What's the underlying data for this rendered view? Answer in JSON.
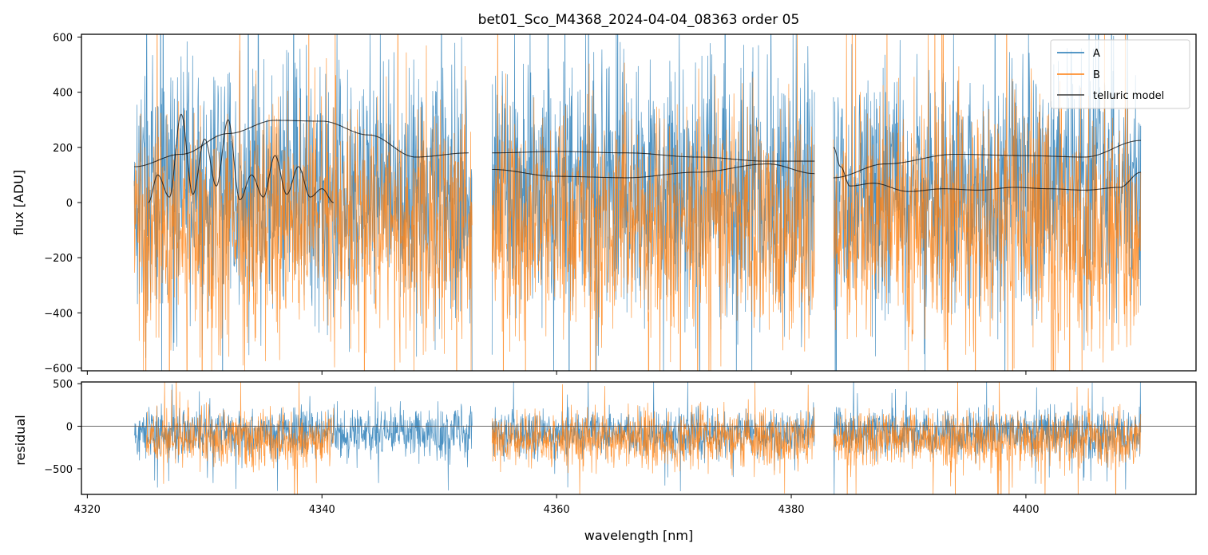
{
  "chart_data": [
    {
      "type": "line",
      "panel": "flux",
      "title": "bet01_Sco_M4368_2024-04-04_08363  order 05",
      "xlabel": "",
      "ylabel": "flux [ADU]",
      "xlim": [
        4319.5,
        4414.5
      ],
      "ylim": [
        -610,
        610
      ],
      "x_ticks": [
        4320,
        4340,
        4360,
        4380,
        4400
      ],
      "y_ticks": [
        -600,
        -400,
        -200,
        0,
        200,
        400,
        600
      ],
      "y_tick_labels": [
        "−600",
        "−400",
        "−200",
        "0",
        "200",
        "400",
        "600"
      ],
      "legend_position": "top-right",
      "segments": [
        [
          4324.0,
          4352.8
        ],
        [
          4354.5,
          4382.0
        ],
        [
          4383.6,
          4409.8
        ]
      ],
      "series": [
        {
          "name": "A",
          "color": "#1f77b4",
          "mean": 50,
          "spread": 320,
          "style": "noisy"
        },
        {
          "name": "B",
          "color": "#ff7f0e",
          "mean": -80,
          "spread": 300,
          "style": "noisy"
        },
        {
          "name": "telluric model",
          "color": "#000000",
          "continuum_curves": [
            {
              "x": [
                4324,
                4328,
                4332,
                4336,
                4340,
                4344,
                4348,
                4352.5
              ],
              "y": [
                130,
                175,
                250,
                298,
                295,
                245,
                165,
                180
              ]
            },
            {
              "x": [
                4354.5,
                4360,
                4366,
                4372,
                4378,
                4382
              ],
              "y": [
                180,
                185,
                180,
                165,
                150,
                150
              ]
            },
            {
              "x": [
                4354.5,
                4360,
                4366,
                4372,
                4378,
                4382
              ],
              "y": [
                120,
                95,
                90,
                110,
                140,
                105
              ]
            },
            {
              "x": [
                4383.6,
                4388,
                4394,
                4400,
                4405,
                4409.8
              ],
              "y": [
                90,
                140,
                175,
                170,
                165,
                225
              ]
            }
          ],
          "lines": [
            {
              "x": [
                4325.2,
                4326,
                4327,
                4328,
                4329,
                4330,
                4331,
                4332,
                4333,
                4334,
                4335,
                4336,
                4337,
                4338,
                4339,
                4340,
                4341
              ],
              "y": [
                0,
                100,
                20,
                320,
                30,
                230,
                60,
                300,
                10,
                100,
                20,
                170,
                30,
                130,
                20,
                50,
                0
              ]
            },
            {
              "x": [
                4383.6,
                4384.2,
                4385,
                4387,
                4390,
                4393,
                4396,
                4399,
                4402,
                4405,
                4408,
                4409.8
              ],
              "y": [
                200,
                130,
                60,
                70,
                40,
                50,
                45,
                55,
                50,
                45,
                55,
                110
              ]
            }
          ]
        }
      ]
    },
    {
      "type": "line",
      "panel": "residual",
      "title": "",
      "xlabel": "wavelength [nm]",
      "ylabel": "residual",
      "xlim": [
        4319.5,
        4414.5
      ],
      "ylim": [
        -800,
        520
      ],
      "x_ticks": [
        4320,
        4340,
        4360,
        4380,
        4400
      ],
      "x_tick_labels": [
        "4320",
        "4340",
        "4360",
        "4380",
        "4400"
      ],
      "y_ticks": [
        -500,
        0,
        500
      ],
      "y_tick_labels": [
        "−500",
        "0",
        "500"
      ],
      "zero_line": true,
      "series": [
        {
          "name": "A",
          "color": "#1f77b4",
          "mean": -80,
          "spread": 200,
          "segments": [
            [
              4324.0,
              4352.8
            ],
            [
              4354.5,
              4382.0
            ],
            [
              4383.6,
              4409.8
            ]
          ]
        },
        {
          "name": "B",
          "color": "#ff7f0e",
          "mean": -150,
          "spread": 230,
          "segments": [
            [
              4325.0,
              4341.0
            ],
            [
              4354.5,
              4382.0
            ],
            [
              4383.6,
              4409.8
            ]
          ]
        }
      ]
    }
  ],
  "legend": {
    "items": [
      {
        "label": "A",
        "color": "#1f77b4"
      },
      {
        "label": "B",
        "color": "#ff7f0e"
      },
      {
        "label": "telluric model",
        "color": "#3a3a3a"
      }
    ]
  }
}
